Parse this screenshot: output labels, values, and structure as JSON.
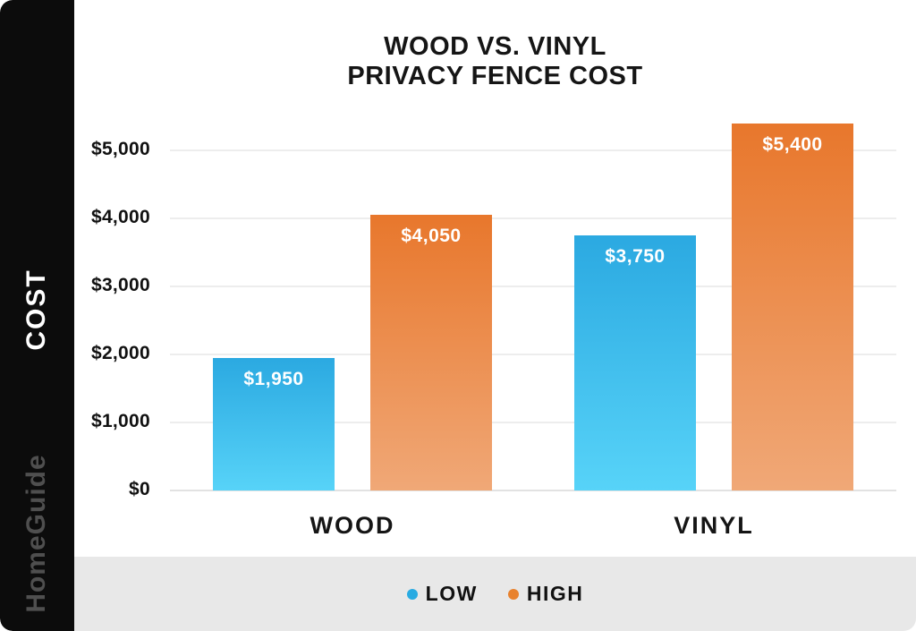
{
  "title": {
    "line1": "WOOD VS. VINYL",
    "line2": "PRIVACY FENCE COST"
  },
  "sidebar": {
    "axis_label": "COST",
    "brand": "HomeGuide"
  },
  "colors": {
    "low_top": "#2ba9e1",
    "low_bottom": "#57d3f8",
    "high_top": "#e8772c",
    "high_bottom": "#f0a877",
    "legend_low_dot": "#29abe2",
    "legend_high_dot": "#e8822e",
    "sidebar_bg": "#0c0c0c",
    "footer_bg": "#e8e8e8",
    "gridline": "#ededed"
  },
  "legend": [
    {
      "label": "LOW",
      "color": "#29abe2"
    },
    {
      "label": "HIGH",
      "color": "#e8822e"
    }
  ],
  "y_axis": {
    "ticks": [
      {
        "label": "$5,000",
        "value": 5000
      },
      {
        "label": "$4,000",
        "value": 4000
      },
      {
        "label": "$3,000",
        "value": 3000
      },
      {
        "label": "$2,000",
        "value": 2000
      },
      {
        "label": "$1,000",
        "value": 1000
      },
      {
        "label": "$0",
        "value": 0
      }
    ]
  },
  "chart_data": {
    "type": "bar",
    "title": "WOOD VS. VINYL PRIVACY FENCE COST",
    "xlabel": "",
    "ylabel": "COST",
    "ylim": [
      0,
      5500
    ],
    "grid": true,
    "legend_position": "bottom",
    "categories": [
      "WOOD",
      "VINYL"
    ],
    "series": [
      {
        "name": "LOW",
        "values": [
          1950,
          3750
        ],
        "labels": [
          "$1,950",
          "$3,750"
        ]
      },
      {
        "name": "HIGH",
        "values": [
          4050,
          5400
        ],
        "labels": [
          "$4,050",
          "$5,400"
        ]
      }
    ]
  }
}
